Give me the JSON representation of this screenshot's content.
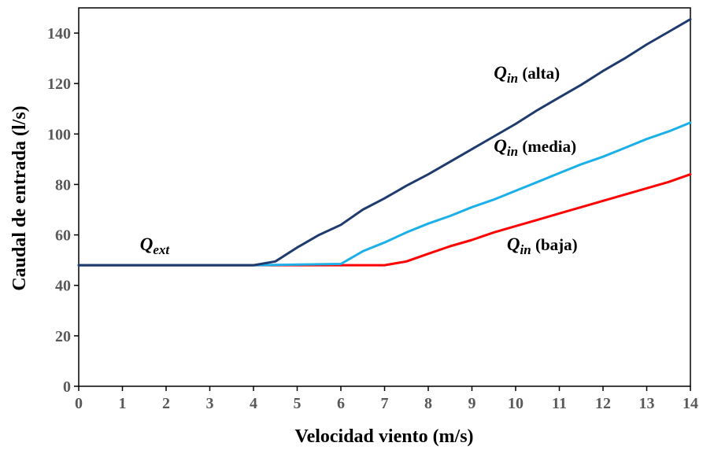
{
  "chart_data": {
    "type": "line",
    "xlabel": "Velocidad viento (m/s)",
    "ylabel": "Caudal de entrada (l/s)",
    "xlim": [
      0,
      14
    ],
    "ylim": [
      0,
      150
    ],
    "xticks": [
      0,
      1,
      2,
      3,
      4,
      5,
      6,
      7,
      8,
      9,
      10,
      11,
      12,
      13,
      14
    ],
    "yticks": [
      0,
      20,
      40,
      60,
      80,
      100,
      120,
      140
    ],
    "grid": false,
    "legend": "none",
    "series": [
      {
        "color": "#FF0000",
        "x": [
          0,
          4,
          6,
          7,
          7.5,
          8,
          8.5,
          9,
          9.5,
          10,
          10.5,
          11,
          11.5,
          12,
          12.5,
          13,
          13.5,
          14
        ],
        "y": [
          48,
          48,
          48,
          48,
          49.5,
          52.5,
          55.5,
          58,
          61,
          63.5,
          66,
          68.5,
          71,
          73.5,
          76,
          78.5,
          81,
          84
        ]
      },
      {
        "color": "#1BB0E8",
        "x": [
          0,
          4,
          6,
          6.5,
          7,
          7.5,
          8,
          8.5,
          9,
          9.5,
          10,
          10.5,
          11,
          11.5,
          12,
          12.5,
          13,
          13.5,
          14
        ],
        "y": [
          48,
          48,
          48.5,
          53.5,
          57,
          61,
          64.5,
          67.5,
          71,
          74,
          77.5,
          81,
          84.5,
          88,
          91,
          94.5,
          98,
          101,
          104.5
        ]
      },
      {
        "color": "#1F3B6E",
        "x": [
          0,
          4,
          4.5,
          5,
          5.5,
          6,
          6.5,
          7,
          7.5,
          8,
          8.5,
          9,
          9.5,
          10,
          10.5,
          11,
          11.5,
          12,
          12.5,
          13,
          13.5,
          14
        ],
        "y": [
          48,
          48,
          49.5,
          55,
          60,
          64,
          70,
          74.5,
          79.5,
          84,
          89,
          94,
          99,
          104,
          109.5,
          114.5,
          119.5,
          125,
          130,
          135.5,
          140.5,
          145.5
        ]
      }
    ],
    "annotations": [
      {
        "q": "Q",
        "sub": "in",
        "text": "(alta)",
        "x": 9.5,
        "y": 122
      },
      {
        "q": "Q",
        "sub": "in",
        "text": "(media)",
        "x": 9.5,
        "y": 93
      },
      {
        "q": "Q",
        "sub": "in",
        "text": "(baja)",
        "x": 9.8,
        "y": 54
      },
      {
        "q": "Q",
        "sub": "ext",
        "text": "",
        "x": 1.4,
        "y": 54
      }
    ]
  }
}
